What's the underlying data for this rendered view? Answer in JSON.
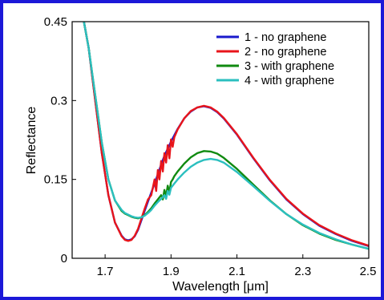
{
  "chart_data": {
    "type": "line",
    "xlabel": "Wavelength [μm]",
    "ylabel": "Reflectance",
    "xlim": [
      1.6,
      2.5
    ],
    "ylim": [
      0,
      0.45
    ],
    "xticks": [
      1.7,
      1.9,
      2.1,
      2.3,
      2.5
    ],
    "xtick_labels": [
      "1.7",
      "1.9",
      "2.1",
      "2.3",
      "2.5"
    ],
    "yticks": [
      0,
      0.15,
      0.3,
      0.45
    ],
    "ytick_labels": [
      "0",
      "0.15",
      "0.3",
      "0.45"
    ],
    "grid": false,
    "legend_position": "top-right",
    "series": [
      {
        "name": "1 - no graphene",
        "color": "#1a1acc",
        "x": [
          1.6,
          1.63,
          1.65,
          1.67,
          1.69,
          1.71,
          1.73,
          1.75,
          1.76,
          1.77,
          1.78,
          1.79,
          1.8,
          1.81,
          1.82,
          1.83,
          1.84,
          1.85,
          1.86,
          1.87,
          1.88,
          1.9,
          1.92,
          1.94,
          1.96,
          1.98,
          2.0,
          2.02,
          2.04,
          2.06,
          2.1,
          2.15,
          2.2,
          2.25,
          2.3,
          2.35,
          2.4,
          2.45,
          2.5
        ],
        "y": [
          0.55,
          0.47,
          0.4,
          0.3,
          0.2,
          0.12,
          0.068,
          0.043,
          0.036,
          0.034,
          0.036,
          0.042,
          0.054,
          0.072,
          0.09,
          0.108,
          0.125,
          0.142,
          0.16,
          0.178,
          0.195,
          0.222,
          0.246,
          0.266,
          0.279,
          0.287,
          0.289,
          0.286,
          0.278,
          0.266,
          0.235,
          0.19,
          0.148,
          0.112,
          0.084,
          0.062,
          0.046,
          0.033,
          0.023
        ]
      },
      {
        "name": "2 - no graphene",
        "color": "#e8151b",
        "x": [
          1.6,
          1.63,
          1.65,
          1.67,
          1.69,
          1.71,
          1.73,
          1.75,
          1.76,
          1.77,
          1.78,
          1.79,
          1.8,
          1.81,
          1.82,
          1.83,
          1.84,
          1.85,
          1.855,
          1.86,
          1.865,
          1.87,
          1.875,
          1.88,
          1.885,
          1.89,
          1.895,
          1.9,
          1.905,
          1.91,
          1.92,
          1.94,
          1.96,
          1.98,
          2.0,
          2.02,
          2.04,
          2.06,
          2.1,
          2.15,
          2.2,
          2.25,
          2.3,
          2.35,
          2.4,
          2.45,
          2.5
        ],
        "y": [
          0.55,
          0.47,
          0.4,
          0.3,
          0.2,
          0.12,
          0.068,
          0.042,
          0.035,
          0.033,
          0.035,
          0.043,
          0.056,
          0.075,
          0.094,
          0.112,
          0.12,
          0.15,
          0.128,
          0.168,
          0.15,
          0.185,
          0.165,
          0.2,
          0.182,
          0.215,
          0.19,
          0.226,
          0.212,
          0.23,
          0.245,
          0.266,
          0.28,
          0.287,
          0.29,
          0.287,
          0.279,
          0.267,
          0.236,
          0.191,
          0.149,
          0.113,
          0.085,
          0.063,
          0.047,
          0.034,
          0.024
        ]
      },
      {
        "name": "3 - with graphene",
        "color": "#108a10",
        "x": [
          1.6,
          1.63,
          1.65,
          1.67,
          1.69,
          1.71,
          1.73,
          1.75,
          1.76,
          1.77,
          1.78,
          1.79,
          1.8,
          1.81,
          1.82,
          1.83,
          1.84,
          1.85,
          1.86,
          1.87,
          1.875,
          1.88,
          1.885,
          1.89,
          1.895,
          1.9,
          1.905,
          1.91,
          1.92,
          1.94,
          1.96,
          1.98,
          2.0,
          2.02,
          2.04,
          2.06,
          2.1,
          2.15,
          2.2,
          2.25,
          2.3,
          2.35,
          2.4,
          2.45,
          2.5
        ],
        "y": [
          0.55,
          0.47,
          0.4,
          0.31,
          0.22,
          0.15,
          0.11,
          0.09,
          0.085,
          0.082,
          0.079,
          0.077,
          0.076,
          0.078,
          0.082,
          0.088,
          0.095,
          0.104,
          0.112,
          0.12,
          0.112,
          0.13,
          0.118,
          0.138,
          0.125,
          0.145,
          0.15,
          0.156,
          0.165,
          0.18,
          0.192,
          0.2,
          0.204,
          0.203,
          0.199,
          0.191,
          0.17,
          0.14,
          0.11,
          0.084,
          0.063,
          0.047,
          0.035,
          0.026,
          0.018
        ]
      },
      {
        "name": "4 - with graphene",
        "color": "#2bbfbf",
        "x": [
          1.6,
          1.63,
          1.65,
          1.67,
          1.69,
          1.71,
          1.73,
          1.75,
          1.76,
          1.77,
          1.78,
          1.79,
          1.8,
          1.81,
          1.82,
          1.83,
          1.84,
          1.85,
          1.86,
          1.87,
          1.88,
          1.885,
          1.89,
          1.895,
          1.9,
          1.91,
          1.92,
          1.94,
          1.96,
          1.98,
          2.0,
          2.02,
          2.04,
          2.06,
          2.1,
          2.15,
          2.2,
          2.25,
          2.3,
          2.35,
          2.4,
          2.45,
          2.5
        ],
        "y": [
          0.55,
          0.47,
          0.4,
          0.31,
          0.22,
          0.15,
          0.11,
          0.092,
          0.086,
          0.083,
          0.08,
          0.078,
          0.077,
          0.078,
          0.081,
          0.086,
          0.092,
          0.1,
          0.107,
          0.113,
          0.12,
          0.113,
          0.128,
          0.121,
          0.134,
          0.142,
          0.15,
          0.163,
          0.174,
          0.182,
          0.187,
          0.189,
          0.187,
          0.182,
          0.164,
          0.137,
          0.109,
          0.084,
          0.064,
          0.048,
          0.036,
          0.026,
          0.018
        ]
      }
    ]
  }
}
